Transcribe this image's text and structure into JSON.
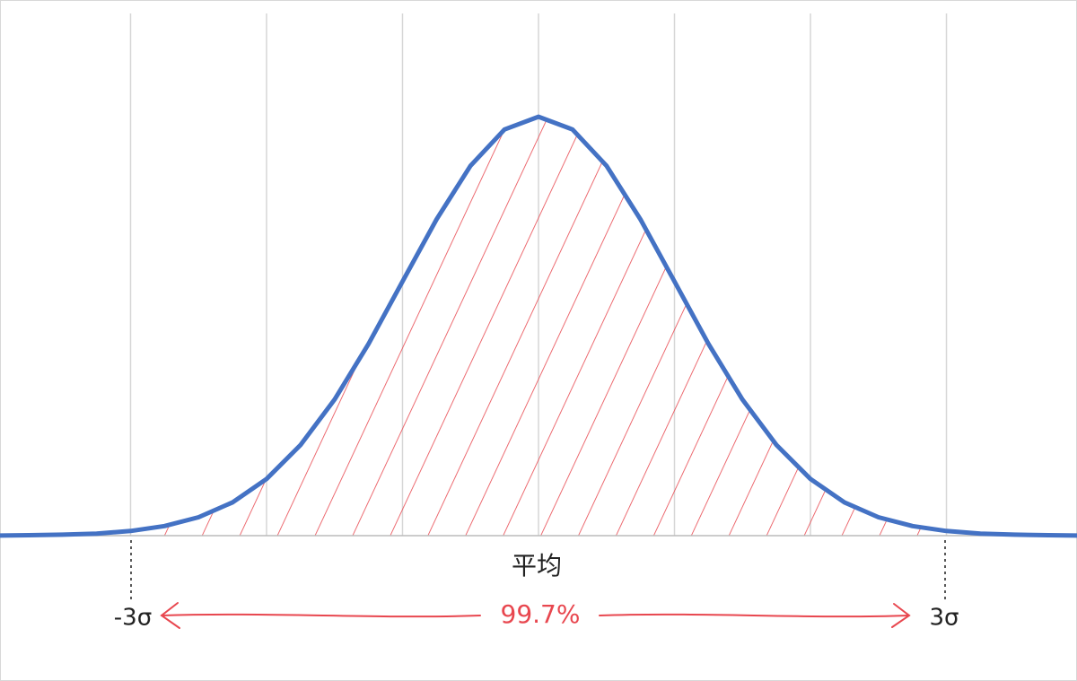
{
  "chart_data": {
    "type": "line",
    "x": [
      -4,
      -3.75,
      -3.5,
      -3.25,
      -3,
      -2.75,
      -2.5,
      -2.25,
      -2,
      -1.75,
      -1.5,
      -1.25,
      -1,
      -0.75,
      -0.5,
      -0.25,
      0,
      0.25,
      0.5,
      0.75,
      1,
      1.25,
      1.5,
      1.75,
      2,
      2.25,
      2.5,
      2.75,
      3,
      3.25,
      3.5,
      3.75,
      4
    ],
    "series": [
      {
        "color": "#4472c4",
        "values": [
          0.0001,
          0.0004,
          0.0009,
          0.002,
          0.0044,
          0.0091,
          0.0175,
          0.0317,
          0.054,
          0.0863,
          0.1295,
          0.1826,
          0.242,
          0.3011,
          0.3521,
          0.3867,
          0.3989,
          0.3867,
          0.3521,
          0.3011,
          0.242,
          0.1826,
          0.1295,
          0.0863,
          0.054,
          0.0317,
          0.0175,
          0.0091,
          0.0044,
          0.002,
          0.0009,
          0.0004,
          0.0001
        ]
      }
    ],
    "xlim": [
      -3.96,
      3.96
    ],
    "xticks": [
      -3,
      -2,
      -1,
      0,
      1,
      2,
      3
    ],
    "ylim": [
      0,
      0.51
    ],
    "grid": true,
    "annotations": {
      "mean": "平均",
      "lower": "-3σ",
      "upper": "3σ",
      "coverage": "99.7%"
    },
    "shade_color": "#e8474f"
  }
}
